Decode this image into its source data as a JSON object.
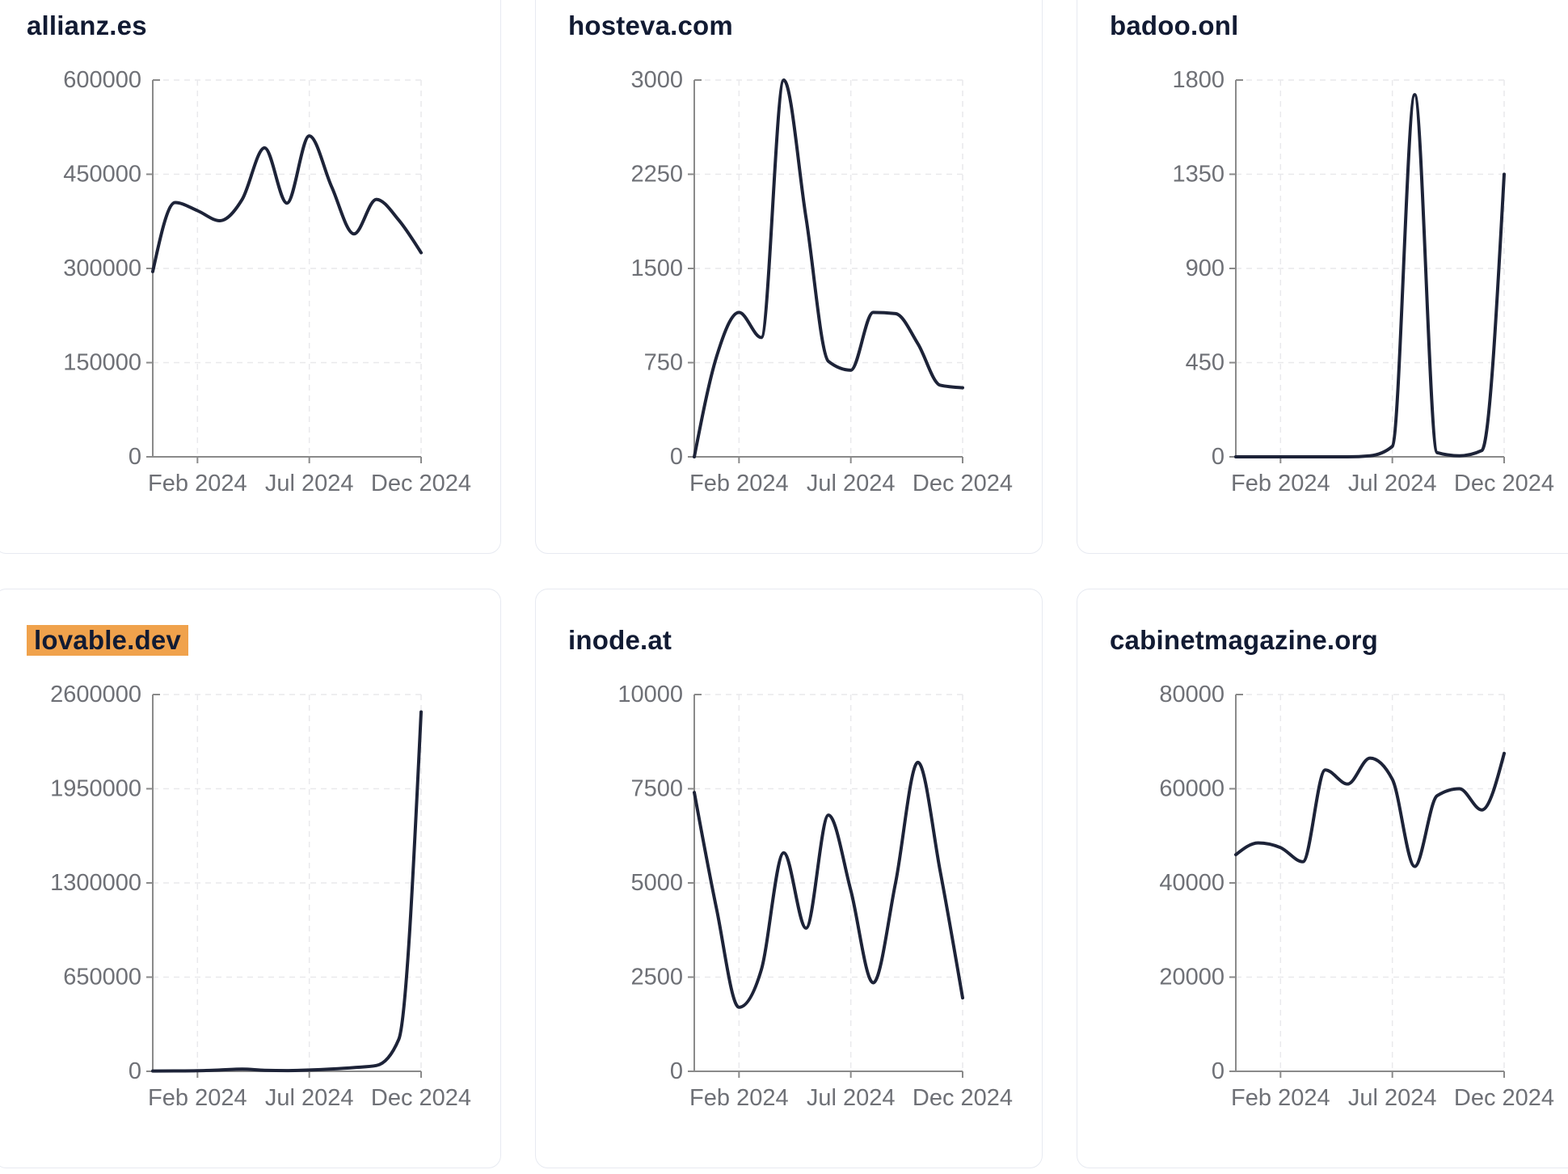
{
  "page": {
    "background": "#ffffff"
  },
  "theme": {
    "card_background": "#ffffff",
    "card_border": "#e7eaf1",
    "title_color": "#121b33",
    "highlight_color": "#f0a24c",
    "line_color": "#1d2338",
    "axis_color": "#8a8a8a",
    "tick_label_color": "#6e7076",
    "grid_color": "#e9e9ec"
  },
  "chart_data": {
    "type": "line",
    "grid": "dashed horizontal and vertical",
    "legend": "none",
    "x_months": [
      "Dec 2023",
      "Jan 2024",
      "Feb 2024",
      "Mar 2024",
      "Apr 2024",
      "May 2024",
      "Jun 2024",
      "Jul 2024",
      "Aug 2024",
      "Sep 2024",
      "Oct 2024",
      "Nov 2024",
      "Dec 2024"
    ],
    "x_axis_ticks": [
      {
        "index": 2,
        "label": "Feb 2024"
      },
      {
        "index": 7,
        "label": "Jul 2024"
      },
      {
        "index": 12,
        "label": "Dec 2024"
      }
    ],
    "charts": [
      {
        "title": "allianz.es",
        "highlighted": false,
        "ylim": [
          0,
          600000
        ],
        "y_ticks": [
          0,
          150000,
          300000,
          450000,
          600000
        ],
        "values": [
          295000,
          405000,
          392000,
          376000,
          410000,
          492000,
          404000,
          511000,
          430000,
          355000,
          410000,
          377000,
          325000
        ]
      },
      {
        "title": "hosteva.com",
        "highlighted": false,
        "ylim": [
          0,
          3000
        ],
        "y_ticks": [
          0,
          750,
          1500,
          2250,
          3000
        ],
        "values": [
          0,
          800,
          1150,
          950,
          3000,
          1900,
          760,
          690,
          1150,
          1140,
          900,
          570,
          550
        ]
      },
      {
        "title": "badoo.onl",
        "highlighted": false,
        "ylim": [
          0,
          1800
        ],
        "y_ticks": [
          0,
          450,
          900,
          1350,
          1800
        ],
        "values": [
          0,
          0,
          0,
          0,
          0,
          0,
          5,
          50,
          1730,
          20,
          5,
          30,
          1350
        ]
      },
      {
        "title": "lovable.dev",
        "highlighted": true,
        "ylim": [
          0,
          2600000
        ],
        "y_ticks": [
          0,
          650000,
          1300000,
          1950000,
          2600000
        ],
        "values": [
          2000,
          2500,
          4000,
          9000,
          15000,
          7000,
          5000,
          9000,
          16000,
          26000,
          40000,
          220000,
          2480000
        ]
      },
      {
        "title": "inode.at",
        "highlighted": false,
        "ylim": [
          0,
          10000
        ],
        "y_ticks": [
          0,
          2500,
          5000,
          7500,
          10000
        ],
        "values": [
          7400,
          4300,
          1700,
          2700,
          5800,
          3800,
          6800,
          4800,
          2350,
          5000,
          8200,
          5300,
          1950
        ]
      },
      {
        "title": "cabinetmagazine.org",
        "highlighted": false,
        "ylim": [
          0,
          80000
        ],
        "y_ticks": [
          0,
          20000,
          40000,
          60000,
          80000
        ],
        "values": [
          46000,
          48500,
          47500,
          44500,
          64000,
          61000,
          66500,
          62000,
          43500,
          58500,
          60000,
          55500,
          67500
        ]
      }
    ]
  }
}
